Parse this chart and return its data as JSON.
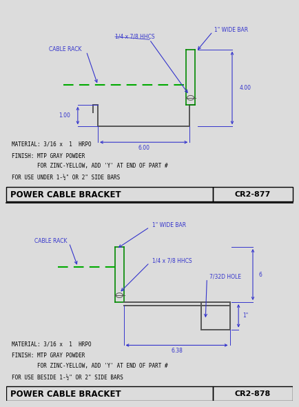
{
  "bg_color": "#dcdcdc",
  "part_color": "#555555",
  "green_color": "#00aa00",
  "annotation_color": "#3333cc",
  "panel1": {
    "title": "POWER CABLE BRACKET",
    "part_num": "CR2-877",
    "material": "MATERIAL: 3/16 x  1  HRPO",
    "finish1": "FINISH: MTP GRAY POWDER",
    "finish2": "        FOR ZINC-YELLOW, ADD 'Y' AT END OF PART #",
    "note": "FOR USE UNDER 1-½\" OR 2\" SIDE BARS"
  },
  "panel2": {
    "title": "POWER CABLE BRACKET",
    "part_num": "CR2-878",
    "material": "MATERIAL: 3/16 x  1  HRPO",
    "finish1": "FINISH: MTP GRAY POWDER",
    "finish2": "        FOR ZINC-YELLOW, ADD 'Y' AT END OF PART #",
    "note": "FOR USE BESIDE 1-½\" OR 2\" SIDE BARS"
  }
}
